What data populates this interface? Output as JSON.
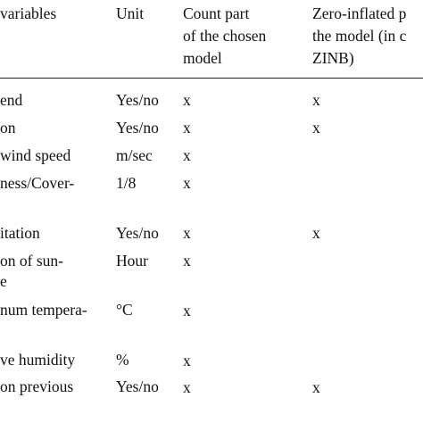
{
  "header": {
    "variables": "variables",
    "unit": "Unit",
    "count_line1": "Count part",
    "count_line2": "of the chosen",
    "count_line3": "model",
    "zero_line1": "Zero-inflated p",
    "zero_line2": "the model (in c",
    "zero_line3": "ZINB)"
  },
  "rows": [
    {
      "var": [
        "end"
      ],
      "unit": "Yes/no",
      "count": "x",
      "zero": "x"
    },
    {
      "var": [
        "on"
      ],
      "unit": "Yes/no",
      "count": "x",
      "zero": "x"
    },
    {
      "var": [
        "wind speed"
      ],
      "unit": "m/sec",
      "count": "x",
      "zero": ""
    },
    {
      "var": [
        "ness/Cover-"
      ],
      "unit": "1/8",
      "count": "x",
      "zero": ""
    },
    {
      "var": [
        "itation"
      ],
      "unit": "Yes/no",
      "count": "x",
      "zero": "x"
    },
    {
      "var": [
        "on of sun-",
        "e"
      ],
      "unit": "Hour",
      "count": "x",
      "zero": ""
    },
    {
      "var": [
        "num tempera-"
      ],
      "unit": "°C",
      "count": "x",
      "zero": ""
    },
    {
      "var": [
        "ve humidity"
      ],
      "unit": "%",
      "count": "x",
      "zero": ""
    },
    {
      "var": [
        "on previous"
      ],
      "unit": "Yes/no",
      "count": "x",
      "zero": "x"
    }
  ]
}
